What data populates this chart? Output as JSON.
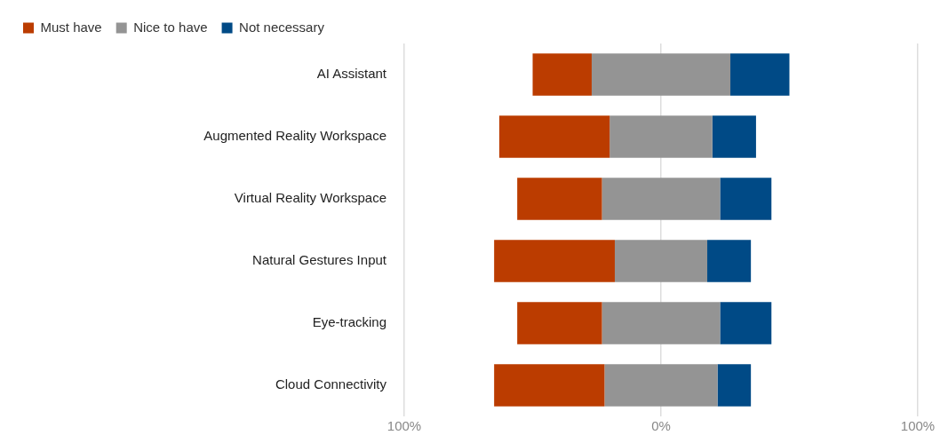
{
  "chart_data": {
    "type": "bar",
    "orientation": "horizontal",
    "categories": [
      "AI Assistant",
      "Augmented Reality Workspace",
      "Virtual Reality Workspace",
      "Natural Gestures Input",
      "Eye-tracking",
      "Cloud Connectivity"
    ],
    "series": [
      {
        "name": "Must have",
        "color": "#bb3c00",
        "base": [
          -50,
          -63,
          -56,
          -65,
          -56,
          -65
        ],
        "values": [
          23,
          43,
          33,
          47,
          33,
          43
        ]
      },
      {
        "name": "Nice to have",
        "color": "#949494",
        "base": [
          -27,
          -20,
          -23,
          -18,
          -23,
          -22
        ],
        "values": [
          54,
          40,
          46,
          36,
          46,
          44
        ]
      },
      {
        "name": "Not necessary",
        "color": "#004a86",
        "base": [
          27,
          20,
          23,
          18,
          23,
          22
        ],
        "values": [
          23,
          17,
          20,
          17,
          20,
          13
        ]
      }
    ],
    "xlim": [
      -100,
      100
    ],
    "xticks": [
      {
        "value": -100,
        "label": "100%"
      },
      {
        "value": 0,
        "label": "0%"
      },
      {
        "value": 100,
        "label": "100%"
      }
    ],
    "grid": "x",
    "legend": "top left"
  }
}
